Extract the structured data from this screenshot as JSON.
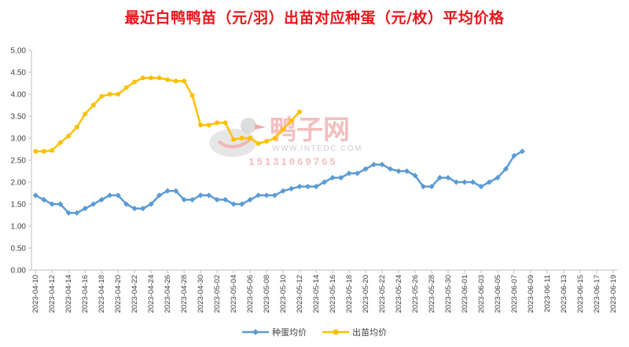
{
  "chart_data": {
    "type": "line",
    "title": "最近白鸭鸭苗（元/羽）出苗对应种蛋（元/枚）平均价格",
    "ylim": [
      0,
      5
    ],
    "yticks": [
      "0.00",
      "0.50",
      "1.00",
      "1.50",
      "2.00",
      "2.50",
      "3.00",
      "3.50",
      "4.00",
      "4.50",
      "5.00"
    ],
    "x_tick_labels": [
      "2023-04-10",
      "2023-04-12",
      "2023-04-14",
      "2023-04-16",
      "2023-04-18",
      "2023-04-20",
      "2023-04-22",
      "2023-04-24",
      "2023-04-26",
      "2023-04-28",
      "2023-04-30",
      "2023-05-02",
      "2023-05-04",
      "2023-05-06",
      "2023-05-08",
      "2023-05-10",
      "2023-05-12",
      "2023-05-14",
      "2023-05-16",
      "2023-05-18",
      "2023-05-20",
      "2023-05-22",
      "2023-05-24",
      "2023-05-26",
      "2023-05-28",
      "2023-05-30",
      "2023-06-01",
      "2023-06-03",
      "2023-06-05",
      "2023-06-07",
      "2023-06-09",
      "2023-06-11",
      "2023-06-13",
      "2023-06-15",
      "2023-06-17",
      "2023-06-19"
    ],
    "x_start": "2023-04-10",
    "x_end": "2023-06-20",
    "series": [
      {
        "name": "种蛋均价",
        "color": "#5b9bd5",
        "marker": "diamond",
        "points": [
          [
            "2023-04-10",
            1.7
          ],
          [
            "2023-04-11",
            1.6
          ],
          [
            "2023-04-12",
            1.5
          ],
          [
            "2023-04-13",
            1.5
          ],
          [
            "2023-04-14",
            1.3
          ],
          [
            "2023-04-15",
            1.3
          ],
          [
            "2023-04-16",
            1.4
          ],
          [
            "2023-04-17",
            1.5
          ],
          [
            "2023-04-18",
            1.6
          ],
          [
            "2023-04-19",
            1.7
          ],
          [
            "2023-04-20",
            1.7
          ],
          [
            "2023-04-21",
            1.5
          ],
          [
            "2023-04-22",
            1.4
          ],
          [
            "2023-04-23",
            1.4
          ],
          [
            "2023-04-24",
            1.5
          ],
          [
            "2023-04-25",
            1.7
          ],
          [
            "2023-04-26",
            1.8
          ],
          [
            "2023-04-27",
            1.8
          ],
          [
            "2023-04-28",
            1.6
          ],
          [
            "2023-04-29",
            1.6
          ],
          [
            "2023-04-30",
            1.7
          ],
          [
            "2023-05-01",
            1.7
          ],
          [
            "2023-05-02",
            1.6
          ],
          [
            "2023-05-03",
            1.6
          ],
          [
            "2023-05-04",
            1.5
          ],
          [
            "2023-05-05",
            1.5
          ],
          [
            "2023-05-06",
            1.6
          ],
          [
            "2023-05-07",
            1.7
          ],
          [
            "2023-05-08",
            1.7
          ],
          [
            "2023-05-09",
            1.7
          ],
          [
            "2023-05-10",
            1.8
          ],
          [
            "2023-05-11",
            1.85
          ],
          [
            "2023-05-12",
            1.9
          ],
          [
            "2023-05-13",
            1.9
          ],
          [
            "2023-05-14",
            1.9
          ],
          [
            "2023-05-15",
            2.0
          ],
          [
            "2023-05-16",
            2.1
          ],
          [
            "2023-05-17",
            2.1
          ],
          [
            "2023-05-18",
            2.2
          ],
          [
            "2023-05-19",
            2.2
          ],
          [
            "2023-05-20",
            2.3
          ],
          [
            "2023-05-21",
            2.4
          ],
          [
            "2023-05-22",
            2.4
          ],
          [
            "2023-05-23",
            2.3
          ],
          [
            "2023-05-24",
            2.25
          ],
          [
            "2023-05-25",
            2.25
          ],
          [
            "2023-05-26",
            2.15
          ],
          [
            "2023-05-27",
            1.9
          ],
          [
            "2023-05-28",
            1.9
          ],
          [
            "2023-05-29",
            2.1
          ],
          [
            "2023-05-30",
            2.1
          ],
          [
            "2023-05-31",
            2.0
          ],
          [
            "2023-06-01",
            2.0
          ],
          [
            "2023-06-02",
            2.0
          ],
          [
            "2023-06-03",
            1.9
          ],
          [
            "2023-06-04",
            2.0
          ],
          [
            "2023-06-05",
            2.1
          ],
          [
            "2023-06-06",
            2.3
          ],
          [
            "2023-06-07",
            2.6
          ],
          [
            "2023-06-08",
            2.7
          ]
        ]
      },
      {
        "name": "出苗均价",
        "color": "#ffc000",
        "marker": "circle",
        "points": [
          [
            "2023-04-10",
            2.7
          ],
          [
            "2023-04-11",
            2.7
          ],
          [
            "2023-04-12",
            2.72
          ],
          [
            "2023-04-13",
            2.9
          ],
          [
            "2023-04-14",
            3.05
          ],
          [
            "2023-04-15",
            3.25
          ],
          [
            "2023-04-16",
            3.55
          ],
          [
            "2023-04-17",
            3.75
          ],
          [
            "2023-04-18",
            3.95
          ],
          [
            "2023-04-19",
            4.0
          ],
          [
            "2023-04-20",
            4.0
          ],
          [
            "2023-04-21",
            4.15
          ],
          [
            "2023-04-22",
            4.28
          ],
          [
            "2023-04-23",
            4.37
          ],
          [
            "2023-04-24",
            4.37
          ],
          [
            "2023-04-25",
            4.37
          ],
          [
            "2023-04-26",
            4.33
          ],
          [
            "2023-04-27",
            4.3
          ],
          [
            "2023-04-28",
            4.3
          ],
          [
            "2023-04-29",
            3.97
          ],
          [
            "2023-04-30",
            3.3
          ],
          [
            "2023-05-01",
            3.3
          ],
          [
            "2023-05-02",
            3.35
          ],
          [
            "2023-05-03",
            3.35
          ],
          [
            "2023-05-04",
            2.97
          ],
          [
            "2023-05-05",
            3.0
          ],
          [
            "2023-05-06",
            3.0
          ],
          [
            "2023-05-07",
            2.88
          ],
          [
            "2023-05-08",
            2.93
          ],
          [
            "2023-05-09",
            3.0
          ],
          [
            "2023-05-10",
            3.2
          ],
          [
            "2023-05-11",
            3.4
          ],
          [
            "2023-05-12",
            3.6
          ]
        ]
      }
    ],
    "legend_position": "bottom",
    "grid": false
  },
  "watermark": {
    "name_cn": "鸭子网",
    "url": "WWW.INTEDC.COM",
    "phone": "15131069765"
  }
}
